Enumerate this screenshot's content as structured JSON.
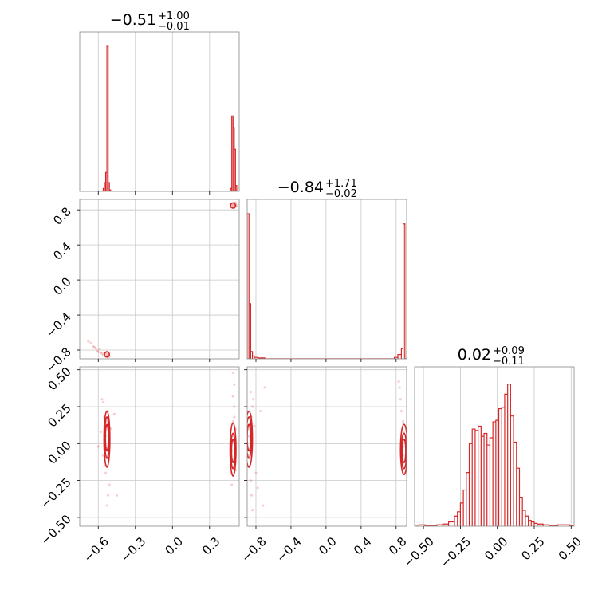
{
  "chart_data": {
    "type": "corner",
    "color": "#d62728",
    "titles": [
      {
        "value": "0.51",
        "sign": "−",
        "upper": "+1.00",
        "lower": "−0.01"
      },
      {
        "value": "0.84",
        "sign": "−",
        "upper": "+1.71",
        "lower": "−0.02"
      },
      {
        "value": "0.02",
        "sign": "",
        "upper": "+0.09",
        "lower": "−0.11"
      }
    ],
    "axes": {
      "p0": {
        "range": [
          -0.75,
          0.54
        ],
        "ticks": [
          -0.6,
          -0.3,
          0.0,
          0.3
        ],
        "tick_labels": [
          "−0.6",
          "−0.3",
          "0.0",
          "0.3"
        ]
      },
      "p1": {
        "range": [
          -0.9,
          0.92
        ],
        "ticks": [
          -0.8,
          -0.4,
          0.0,
          0.4,
          0.8
        ],
        "tick_labels": [
          "−0.8",
          "−0.4",
          "0.0",
          "0.4",
          "0.8"
        ]
      },
      "p2": {
        "range": [
          -0.56,
          0.52
        ],
        "ticks": [
          -0.5,
          -0.25,
          0.0,
          0.25,
          0.5
        ],
        "tick_labels": [
          "−0.50",
          "−0.25",
          "0.00",
          "0.25",
          "0.50"
        ]
      }
    },
    "histograms": [
      {
        "param": "p0",
        "bins": [
          {
            "x0": -0.56,
            "x1": -0.55,
            "h": 0.02
          },
          {
            "x0": -0.55,
            "x1": -0.54,
            "h": 0.06
          },
          {
            "x0": -0.54,
            "x1": -0.53,
            "h": 0.13
          },
          {
            "x0": -0.53,
            "x1": -0.52,
            "h": 1.0
          },
          {
            "x0": -0.52,
            "x1": -0.51,
            "h": 0.06
          },
          {
            "x0": -0.51,
            "x1": -0.5,
            "h": 0.01
          },
          {
            "x0": 0.47,
            "x1": 0.48,
            "h": 0.02
          },
          {
            "x0": 0.48,
            "x1": 0.49,
            "h": 0.52
          },
          {
            "x0": 0.49,
            "x1": 0.5,
            "h": 0.44
          },
          {
            "x0": 0.5,
            "x1": 0.51,
            "h": 0.29
          },
          {
            "x0": 0.51,
            "x1": 0.52,
            "h": 0.04
          }
        ]
      },
      {
        "param": "p1",
        "bins": [
          {
            "x0": -0.9,
            "x1": -0.88,
            "h": 1.0
          },
          {
            "x0": -0.88,
            "x1": -0.86,
            "h": 0.38
          },
          {
            "x0": -0.86,
            "x1": -0.84,
            "h": 0.05
          },
          {
            "x0": -0.84,
            "x1": -0.82,
            "h": 0.02
          },
          {
            "x0": -0.82,
            "x1": -0.78,
            "h": 0.01
          },
          {
            "x0": -0.78,
            "x1": -0.7,
            "h": 0.006
          },
          {
            "x0": 0.78,
            "x1": 0.82,
            "h": 0.01
          },
          {
            "x0": 0.82,
            "x1": 0.86,
            "h": 0.03
          },
          {
            "x0": 0.86,
            "x1": 0.88,
            "h": 0.07
          },
          {
            "x0": 0.88,
            "x1": 0.9,
            "h": 0.93
          }
        ]
      },
      {
        "param": "p2",
        "bins": [
          {
            "x0": -0.53,
            "x1": -0.49,
            "h": 0.01
          },
          {
            "x0": -0.49,
            "x1": -0.41,
            "h": 0.005
          },
          {
            "x0": -0.41,
            "x1": -0.37,
            "h": 0.01
          },
          {
            "x0": -0.37,
            "x1": -0.33,
            "h": 0.015
          },
          {
            "x0": -0.33,
            "x1": -0.29,
            "h": 0.03
          },
          {
            "x0": -0.29,
            "x1": -0.27,
            "h": 0.07
          },
          {
            "x0": -0.27,
            "x1": -0.25,
            "h": 0.1
          },
          {
            "x0": -0.25,
            "x1": -0.23,
            "h": 0.16
          },
          {
            "x0": -0.23,
            "x1": -0.21,
            "h": 0.25
          },
          {
            "x0": -0.21,
            "x1": -0.19,
            "h": 0.37
          },
          {
            "x0": -0.19,
            "x1": -0.17,
            "h": 0.57
          },
          {
            "x0": -0.17,
            "x1": -0.15,
            "h": 0.67
          },
          {
            "x0": -0.15,
            "x1": -0.13,
            "h": 0.66
          },
          {
            "x0": -0.13,
            "x1": -0.11,
            "h": 0.69
          },
          {
            "x0": -0.11,
            "x1": -0.09,
            "h": 0.62
          },
          {
            "x0": -0.09,
            "x1": -0.07,
            "h": 0.64
          },
          {
            "x0": -0.07,
            "x1": -0.05,
            "h": 0.56
          },
          {
            "x0": -0.05,
            "x1": -0.03,
            "h": 0.61
          },
          {
            "x0": -0.03,
            "x1": -0.01,
            "h": 0.72
          },
          {
            "x0": -0.01,
            "x1": 0.01,
            "h": 0.73
          },
          {
            "x0": 0.01,
            "x1": 0.03,
            "h": 0.81
          },
          {
            "x0": 0.03,
            "x1": 0.05,
            "h": 0.82
          },
          {
            "x0": 0.05,
            "x1": 0.07,
            "h": 0.91
          },
          {
            "x0": 0.07,
            "x1": 0.09,
            "h": 0.98
          },
          {
            "x0": 0.09,
            "x1": 0.11,
            "h": 0.76
          },
          {
            "x0": 0.11,
            "x1": 0.13,
            "h": 0.58
          },
          {
            "x0": 0.13,
            "x1": 0.15,
            "h": 0.4
          },
          {
            "x0": 0.15,
            "x1": 0.17,
            "h": 0.2
          },
          {
            "x0": 0.17,
            "x1": 0.19,
            "h": 0.11
          },
          {
            "x0": 0.19,
            "x1": 0.21,
            "h": 0.07
          },
          {
            "x0": 0.21,
            "x1": 0.23,
            "h": 0.04
          },
          {
            "x0": 0.23,
            "x1": 0.25,
            "h": 0.03
          },
          {
            "x0": 0.25,
            "x1": 0.27,
            "h": 0.02
          },
          {
            "x0": 0.27,
            "x1": 0.31,
            "h": 0.015
          },
          {
            "x0": 0.31,
            "x1": 0.35,
            "h": 0.01
          },
          {
            "x0": 0.35,
            "x1": 0.41,
            "h": 0.005
          },
          {
            "x0": 0.41,
            "x1": 0.49,
            "h": 0.01
          },
          {
            "x0": 0.49,
            "x1": 0.51,
            "h": 0.005
          }
        ]
      }
    ],
    "scatter_samples": {
      "p1_vs_p0": [
        [
          0.48,
          0.87
        ],
        [
          0.49,
          0.86
        ],
        [
          0.5,
          0.85
        ],
        [
          0.51,
          0.84
        ],
        [
          0.49,
          0.83
        ],
        [
          0.5,
          0.88
        ],
        [
          0.51,
          0.86
        ],
        [
          0.48,
          0.84
        ],
        [
          0.52,
          0.85
        ],
        [
          0.47,
          0.86
        ],
        [
          0.5,
          0.82
        ],
        [
          0.51,
          0.88
        ],
        [
          -0.53,
          -0.85
        ],
        [
          -0.54,
          -0.83
        ],
        [
          -0.52,
          -0.86
        ],
        [
          -0.55,
          -0.84
        ],
        [
          -0.53,
          -0.82
        ],
        [
          -0.56,
          -0.86
        ],
        [
          -0.57,
          -0.84
        ],
        [
          -0.58,
          -0.83
        ],
        [
          -0.6,
          -0.82
        ],
        [
          -0.62,
          -0.78
        ],
        [
          -0.64,
          -0.76
        ],
        [
          -0.66,
          -0.72
        ],
        [
          -0.68,
          -0.7
        ],
        [
          -0.59,
          -0.79
        ],
        [
          -0.61,
          -0.81
        ],
        [
          -0.63,
          -0.77
        ],
        [
          -0.51,
          -0.87
        ],
        [
          -0.52,
          -0.88
        ],
        [
          -0.54,
          -0.87
        ]
      ],
      "p2_vs_p0": [
        [
          -0.53,
          0.15
        ],
        [
          -0.54,
          0.05
        ],
        [
          -0.52,
          -0.05
        ],
        [
          -0.55,
          0.12
        ],
        [
          -0.53,
          -0.1
        ],
        [
          -0.52,
          0.22
        ],
        [
          -0.54,
          -0.2
        ],
        [
          -0.56,
          0.28
        ],
        [
          -0.51,
          -0.28
        ],
        [
          -0.58,
          0.08
        ],
        [
          -0.6,
          -0.02
        ],
        [
          -0.57,
          0.3
        ],
        [
          -0.53,
          -0.42
        ],
        [
          -0.52,
          -0.35
        ],
        [
          -0.55,
          0.18
        ],
        [
          -0.54,
          -0.15
        ],
        [
          -0.5,
          0.1
        ],
        [
          -0.56,
          -0.08
        ],
        [
          -0.45,
          -0.35
        ],
        [
          -0.47,
          0.2
        ],
        [
          0.48,
          -0.05
        ],
        [
          0.49,
          0.05
        ],
        [
          0.5,
          -0.12
        ],
        [
          0.49,
          0.15
        ],
        [
          0.48,
          -0.2
        ],
        [
          0.5,
          0.25
        ],
        [
          0.51,
          -0.18
        ],
        [
          0.47,
          0.0
        ],
        [
          0.49,
          0.32
        ],
        [
          0.48,
          -0.28
        ],
        [
          0.5,
          0.4
        ],
        [
          0.49,
          0.48
        ],
        [
          0.51,
          0.1
        ],
        [
          0.47,
          -0.1
        ],
        [
          0.5,
          0.18
        ]
      ],
      "p2_vs_p1": [
        [
          -0.87,
          0.1
        ],
        [
          -0.86,
          -0.05
        ],
        [
          -0.88,
          0.05
        ],
        [
          -0.85,
          0.18
        ],
        [
          -0.87,
          -0.15
        ],
        [
          -0.84,
          0.25
        ],
        [
          -0.86,
          -0.25
        ],
        [
          -0.83,
          0.3
        ],
        [
          -0.85,
          -0.35
        ],
        [
          -0.8,
          -0.2
        ],
        [
          -0.78,
          -0.3
        ],
        [
          -0.75,
          0.22
        ],
        [
          -0.72,
          -0.42
        ],
        [
          -0.7,
          0.38
        ],
        [
          -0.82,
          0.12
        ],
        [
          -0.88,
          -0.08
        ],
        [
          -0.86,
          0.35
        ],
        [
          -0.84,
          -0.45
        ],
        [
          0.88,
          -0.02
        ],
        [
          0.89,
          0.08
        ],
        [
          0.87,
          -0.12
        ],
        [
          0.88,
          0.15
        ],
        [
          0.89,
          -0.2
        ],
        [
          0.86,
          0.22
        ],
        [
          0.85,
          0.3
        ],
        [
          0.84,
          0.38
        ],
        [
          0.83,
          0.42
        ],
        [
          0.88,
          -0.08
        ],
        [
          0.87,
          0.05
        ]
      ]
    },
    "contours": {
      "p2_vs_p0": [
        {
          "cx": -0.53,
          "cy": 0.04,
          "rx": 0.012,
          "ry": 0.09
        },
        {
          "cx": -0.53,
          "cy": 0.04,
          "rx": 0.018,
          "ry": 0.14
        },
        {
          "cx": -0.53,
          "cy": 0.03,
          "rx": 0.024,
          "ry": 0.19
        },
        {
          "cx": 0.49,
          "cy": -0.05,
          "rx": 0.012,
          "ry": 0.08
        },
        {
          "cx": 0.49,
          "cy": -0.05,
          "rx": 0.018,
          "ry": 0.12
        },
        {
          "cx": 0.49,
          "cy": -0.04,
          "rx": 0.024,
          "ry": 0.18
        }
      ],
      "p2_vs_p1": [
        {
          "cx": -0.88,
          "cy": 0.04,
          "rx": 0.02,
          "ry": 0.09
        },
        {
          "cx": -0.88,
          "cy": 0.04,
          "rx": 0.03,
          "ry": 0.14
        },
        {
          "cx": -0.88,
          "cy": 0.03,
          "rx": 0.04,
          "ry": 0.19
        },
        {
          "cx": 0.89,
          "cy": -0.05,
          "rx": 0.02,
          "ry": 0.08
        },
        {
          "cx": 0.89,
          "cy": -0.05,
          "rx": 0.03,
          "ry": 0.12
        },
        {
          "cx": 0.89,
          "cy": -0.04,
          "rx": 0.04,
          "ry": 0.17
        }
      ],
      "p1_vs_p0": [
        {
          "cx": 0.49,
          "cy": 0.85,
          "rx": 0.02,
          "ry": 0.03
        },
        {
          "cx": -0.53,
          "cy": -0.85,
          "rx": 0.02,
          "ry": 0.03
        }
      ]
    },
    "grid": true,
    "legend": "none"
  }
}
